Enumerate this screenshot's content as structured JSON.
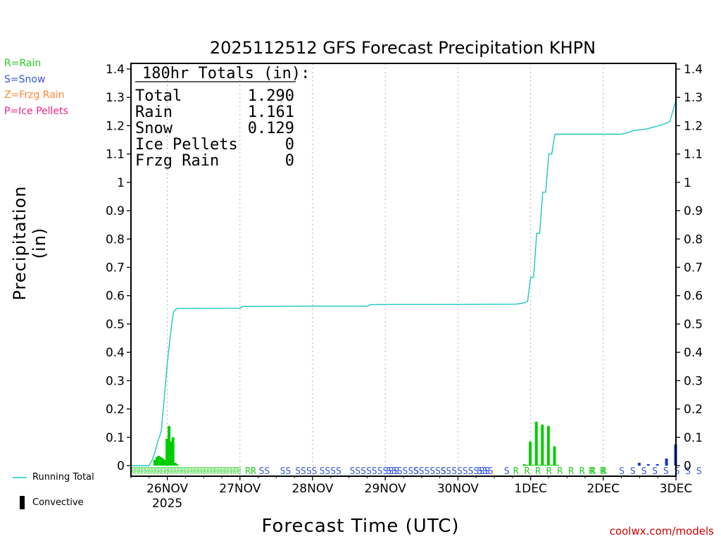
{
  "legend_types": [
    {
      "label": "R=Rain",
      "color": "#22cc22"
    },
    {
      "label": "S=Snow",
      "color": "#3355dd"
    },
    {
      "label": "Z=Frzg Rain",
      "color": "#ff8833"
    },
    {
      "label": "P=Ice Pellets",
      "color": "#ee2288"
    }
  ],
  "key": {
    "running_total": "Running Total",
    "convective": "Convective"
  },
  "footer": "coolwx.com/models",
  "chart_data": {
    "type": "bar",
    "title": "2025112512 GFS Forecast Precipitation KHPN",
    "xlabel": "Forecast Time (UTC)",
    "ylabel": "Precipitation (in)",
    "ylim": [
      0,
      1.4
    ],
    "yticks": [
      "0",
      "0.1",
      "0.2",
      "0.3",
      "0.4",
      "0.5",
      "0.6",
      "0.7",
      "0.8",
      "0.9",
      "1",
      "1.1",
      "1.2",
      "1.3",
      "1.4"
    ],
    "x_range_hours": [
      0,
      180
    ],
    "xticks": [
      {
        "label": "26NOV",
        "hour": 12,
        "sub": "2025"
      },
      {
        "label": "27NOV",
        "hour": 36
      },
      {
        "label": "28NOV",
        "hour": 60
      },
      {
        "label": "29NOV",
        "hour": 84
      },
      {
        "label": "30NOV",
        "hour": 108
      },
      {
        "label": "1DEC",
        "hour": 132
      },
      {
        "label": "2DEC",
        "hour": 156
      },
      {
        "label": "3DEC",
        "hour": 180
      }
    ],
    "totals_box": {
      "header": "180hr Totals (in):",
      "rows": [
        {
          "label": "Total",
          "value": "1.290"
        },
        {
          "label": "Rain",
          "value": "1.161"
        },
        {
          "label": "Snow",
          "value": "0.129"
        },
        {
          "label": "Ice Pellets",
          "value": "0"
        },
        {
          "label": "Frzg Rain",
          "value": "0"
        }
      ]
    },
    "running_total": {
      "hours": [
        0,
        6,
        7,
        8,
        9,
        10,
        11,
        12,
        13,
        14,
        15,
        16,
        36,
        37,
        60,
        78,
        79,
        84,
        108,
        127,
        129,
        130,
        131,
        132,
        133,
        134,
        135,
        136,
        137,
        138,
        139,
        140,
        141,
        142,
        144,
        150,
        156,
        162,
        164,
        166,
        170,
        172,
        176,
        178,
        180
      ],
      "values": [
        0,
        0,
        0.02,
        0.05,
        0.09,
        0.12,
        0.24,
        0.36,
        0.46,
        0.54,
        0.554,
        0.555,
        0.556,
        0.562,
        0.563,
        0.563,
        0.568,
        0.569,
        0.569,
        0.57,
        0.573,
        0.575,
        0.58,
        0.665,
        0.665,
        0.82,
        0.82,
        0.965,
        0.965,
        1.1,
        1.1,
        1.17,
        1.17,
        1.17,
        1.17,
        1.17,
        1.17,
        1.17,
        1.175,
        1.183,
        1.188,
        1.193,
        1.205,
        1.215,
        1.29
      ]
    },
    "bars": {
      "hours": [
        8,
        8.7,
        9.3,
        10,
        10.7,
        11.3,
        12,
        12.7,
        13.3,
        14,
        14.7,
        15.3,
        130,
        131,
        132,
        133,
        134,
        135,
        136,
        137,
        138,
        139,
        140,
        141,
        168,
        171,
        174,
        177,
        180
      ],
      "values": [
        0.02,
        0.03,
        0.035,
        0.03,
        0.025,
        0.02,
        0.095,
        0.14,
        0.085,
        0.1,
        0.01,
        0.005,
        0.005,
        0.003,
        0.085,
        0.003,
        0.155,
        0.003,
        0.145,
        0.003,
        0.14,
        0.003,
        0.068,
        0.003,
        0.01,
        0.005,
        0.005,
        0.025,
        0.075
      ],
      "colors": [
        "#00cc00",
        "#00cc00",
        "#00cc00",
        "#00cc00",
        "#00cc00",
        "#00cc00",
        "#00cc00",
        "#00cc00",
        "#00cc00",
        "#00cc00",
        "#00cc00",
        "#00cc00",
        "#00cc00",
        "#00cc00",
        "#00cc00",
        "#00cc00",
        "#00cc00",
        "#00cc00",
        "#00cc00",
        "#00cc00",
        "#00cc00",
        "#00cc00",
        "#00cc00",
        "#00cc00",
        "#1133cc",
        "#1133cc",
        "#1133cc",
        "#1133cc",
        "#1133cc"
      ]
    },
    "precip_codes": [
      {
        "text": "RRRRRRRRRRRRRRRRRRRRRRRRRRRRRRRRRRRRRRRRRRRRRRRRRRRRRRRRRRRRR",
        "hour": 0,
        "type": "R"
      },
      {
        "text": "RR",
        "hour": 37.5,
        "type": "R"
      },
      {
        "text": "SS",
        "hour": 42,
        "type": "S"
      },
      {
        "text": "SS",
        "hour": 49,
        "type": "S"
      },
      {
        "text": "SSSS",
        "hour": 54,
        "type": "S"
      },
      {
        "text": "SSSS",
        "hour": 62,
        "type": "S"
      },
      {
        "text": "SSSSSSSSS",
        "hour": 72,
        "type": "S"
      },
      {
        "text": "SSSSSS",
        "hour": 84,
        "type": "S"
      },
      {
        "text": "SSSSSS",
        "hour": 93,
        "type": "S"
      },
      {
        "text": "SSSSSSSSS",
        "hour": 102,
        "type": "S"
      },
      {
        "text": "SSS",
        "hour": 114,
        "type": "S"
      },
      {
        "text": "S",
        "hour": 123,
        "type": "S"
      },
      {
        "text": "R R R R R R R R R",
        "hour": 126,
        "type": "R"
      },
      {
        "text": "R R",
        "hour": 151,
        "type": "R"
      },
      {
        "text": "S S S S S S S S",
        "hour": 161,
        "type": "S"
      }
    ]
  }
}
